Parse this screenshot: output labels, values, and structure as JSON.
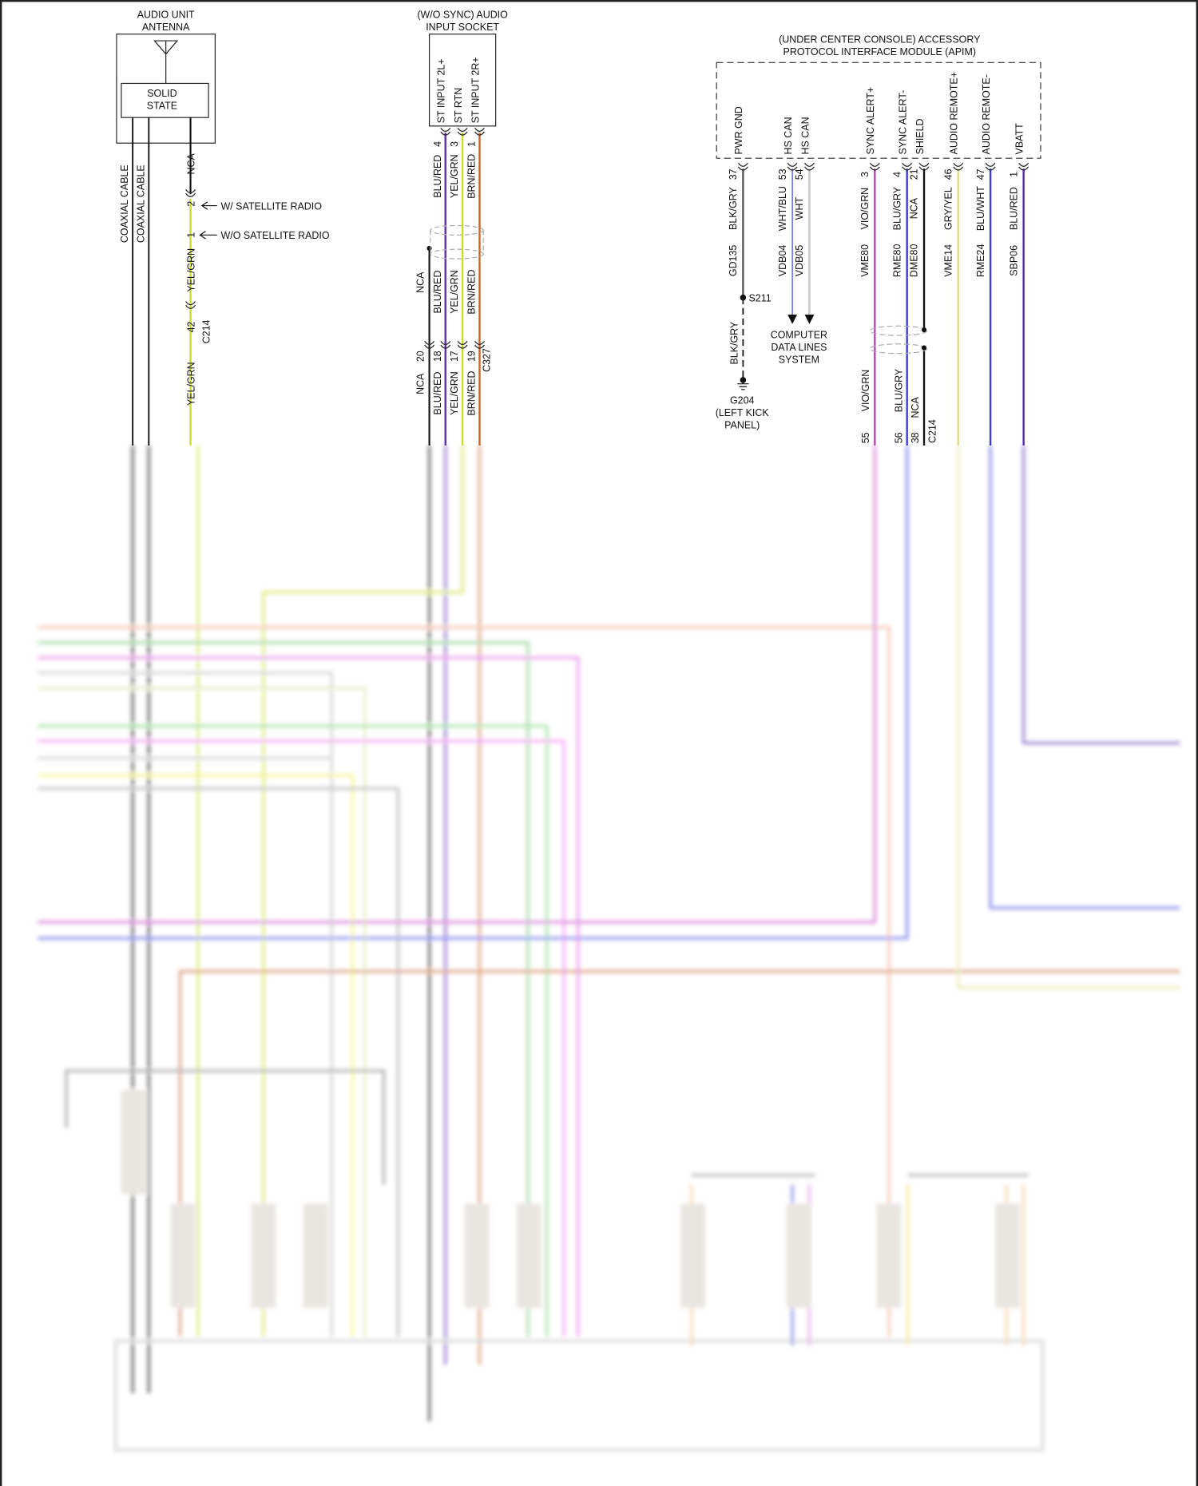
{
  "antenna": {
    "title_line1": "AUDIO UNIT",
    "title_line2": "ANTENNA",
    "inner_line1": "SOLID",
    "inner_line2": "STATE",
    "coax1": "COAXIAL CABLE",
    "coax2": "COAXIAL CABLE",
    "nca": "NCA",
    "pin_2": "2",
    "pin_1": "1",
    "w_sat": "W/ SATELLITE RADIO",
    "wo_sat": "W/O SATELLITE RADIO",
    "wire_upper": "YEL/GRN",
    "c214_pin": "42",
    "c214": "C214",
    "wire_lower": "YEL/GRN"
  },
  "socket": {
    "title_line1": "(W/O SYNC) AUDIO",
    "title_line2": "INPUT SOCKET",
    "pins": [
      {
        "name": "ST INPUT 2L+",
        "pin": "4",
        "wire": "BLU/RED",
        "c327_pin": "18",
        "color": "#5a2cb4"
      },
      {
        "name": "ST RTN",
        "pin": "3",
        "wire": "YEL/GRN",
        "c327_pin": "17",
        "color": "#c8dc28"
      },
      {
        "name": "ST INPUT 2R+",
        "pin": "1",
        "wire": "BRN/RED",
        "c327_pin": "19",
        "color": "#c8642a"
      }
    ],
    "shield_wire": "NCA",
    "shield_pin": "20",
    "connector": "C327"
  },
  "apim": {
    "title_line1": "(UNDER CENTER CONSOLE) ACCESSORY",
    "title_line2": "PROTOCOL INTERFACE MODULE (APIM)",
    "pins": [
      {
        "name": "PWR GND",
        "pin": "37",
        "wire": "BLK/GRY",
        "circuit": "GD135",
        "color": "#555555"
      },
      {
        "name": "HS CAN",
        "pin": "53",
        "wire": "WHT/BLU",
        "circuit": "VDB04",
        "color": "#3c3cd8"
      },
      {
        "name": "HS CAN",
        "pin": "54",
        "wire": "WHT",
        "circuit": "VDB05",
        "color": "#c8c8c8"
      },
      {
        "name": "SYNC ALERT+",
        "pin": "3",
        "wire": "VIO/GRN",
        "circuit": "VME80",
        "color": "#c03cc0"
      },
      {
        "name": "SYNC ALERT-",
        "pin": "4",
        "wire": "BLU/GRY",
        "circuit": "RME80",
        "color": "#3c3cd8"
      },
      {
        "name": "SHIELD",
        "pin": "21",
        "wire": "NCA",
        "circuit": "DME80",
        "color": "#111111"
      },
      {
        "name": "AUDIO REMOTE+",
        "pin": "46",
        "wire": "GRY/YEL",
        "circuit": "VME14",
        "color": "#dcdc8c"
      },
      {
        "name": "AUDIO REMOTE-",
        "pin": "47",
        "wire": "BLU/WHT",
        "circuit": "RME24",
        "color": "#3c3cdc"
      },
      {
        "name": "VBATT",
        "pin": "1",
        "wire": "BLU/RED",
        "circuit": "SBP06",
        "color": "#5028b4"
      }
    ],
    "splice": "S211",
    "ground_wire": "BLK/GRY",
    "ground_line1": "G204",
    "ground_line2": "(LEFT KICK",
    "ground_line3": "PANEL)",
    "data_lines_1": "COMPUTER",
    "data_lines_2": "DATA LINES",
    "data_lines_3": "SYSTEM",
    "lower": [
      {
        "wire": "VIO/GRN",
        "pin": "55"
      },
      {
        "wire": "BLU/GRY",
        "pin": "56"
      },
      {
        "wire": "NCA",
        "pin": "38"
      }
    ],
    "lower_connector": "C214"
  }
}
